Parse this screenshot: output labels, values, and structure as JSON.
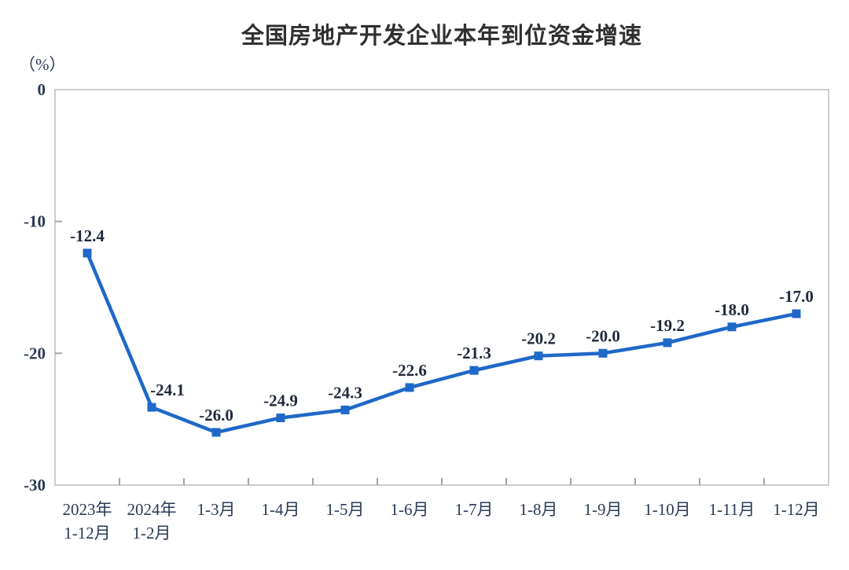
{
  "chart_data": {
    "type": "line",
    "title": "全国房地产开发企业本年到位资金增速",
    "unit_label": "（%）",
    "categories": [
      "2023年\n1-12月",
      "2024年\n1-2月",
      "1-3月",
      "1-4月",
      "1-5月",
      "1-6月",
      "1-7月",
      "1-8月",
      "1-9月",
      "1-10月",
      "1-11月",
      "1-12月"
    ],
    "values": [
      -12.4,
      -24.1,
      -26.0,
      -24.9,
      -24.3,
      -22.6,
      -21.3,
      -20.2,
      -20.0,
      -19.2,
      -18.0,
      -17.0
    ],
    "ylim": [
      -30,
      0
    ],
    "yticks": [
      0,
      -10,
      -20,
      -30
    ],
    "legend": null,
    "grid": "off",
    "colors": {
      "line": "#1E68C8",
      "marker": "#1E68C8",
      "axis_box": "#CDCDCD",
      "tick": "#A6A6A6",
      "axis_text": "#2A3A55",
      "data_label_text": "#20293A",
      "title_text": "#303030"
    }
  }
}
